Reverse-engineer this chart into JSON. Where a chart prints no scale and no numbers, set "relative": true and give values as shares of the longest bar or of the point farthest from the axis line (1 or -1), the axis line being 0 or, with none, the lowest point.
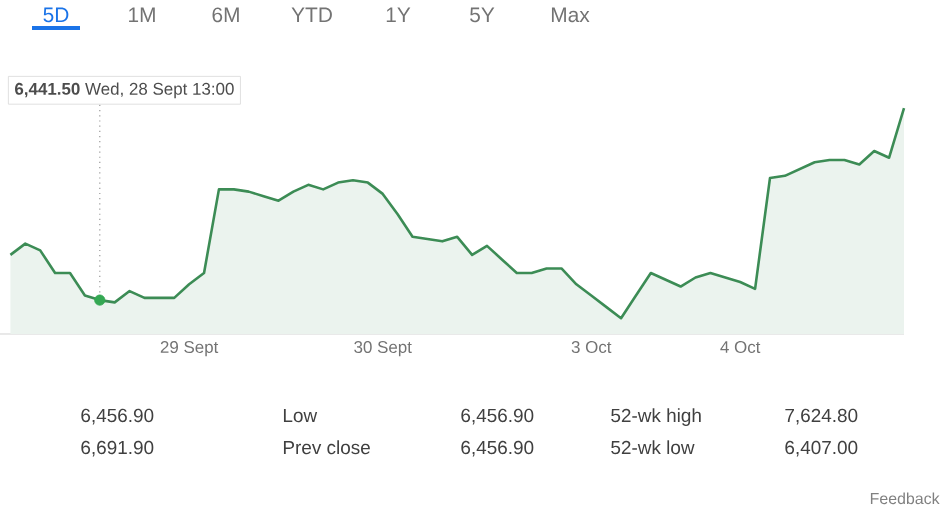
{
  "chart_data": {
    "type": "area",
    "relative": true,
    "categories": [
      null,
      null,
      null,
      null,
      null,
      null,
      null,
      null,
      null,
      null,
      null,
      null,
      "29 Sept",
      null,
      null,
      null,
      null,
      null,
      null,
      null,
      null,
      null,
      null,
      null,
      null,
      "30 Sept",
      null,
      null,
      null,
      null,
      null,
      null,
      null,
      null,
      null,
      null,
      null,
      null,
      null,
      "3 Oct",
      null,
      null,
      null,
      null,
      null,
      null,
      null,
      null,
      null,
      "4 Oct",
      null,
      null,
      null,
      null,
      null,
      null,
      null,
      null,
      null,
      null,
      null
    ],
    "series": [
      {
        "color": "#3c8c55",
        "values": [
          0.35,
          0.4,
          0.37,
          0.27,
          0.27,
          0.17,
          0.15,
          0.14,
          0.19,
          0.16,
          0.16,
          0.16,
          0.22,
          0.27,
          0.64,
          0.64,
          0.63,
          0.61,
          0.59,
          0.63,
          0.66,
          0.64,
          0.67,
          0.68,
          0.67,
          0.62,
          0.53,
          0.43,
          0.42,
          0.41,
          0.43,
          0.35,
          0.39,
          0.33,
          0.27,
          0.27,
          0.29,
          0.29,
          0.22,
          0.17,
          0.12,
          0.07,
          0.17,
          0.27,
          0.24,
          0.21,
          0.25,
          0.27,
          0.25,
          0.23,
          0.2,
          0.69,
          0.7,
          0.73,
          0.76,
          0.77,
          0.77,
          0.75,
          0.81,
          0.78,
          1.0
        ]
      },
      {
        "type": "scatter",
        "color": "#34a853",
        "values": [
          null,
          null,
          null,
          null,
          null,
          null,
          0.15,
          null,
          null,
          null,
          null,
          null,
          null,
          null,
          null,
          null,
          null,
          null,
          null,
          null,
          null,
          null,
          null,
          null,
          null,
          null,
          null,
          null,
          null,
          null,
          null,
          null,
          null,
          null,
          null,
          null,
          null,
          null,
          null,
          null,
          null,
          null,
          null,
          null,
          null,
          null,
          null,
          null,
          null,
          null,
          null,
          null,
          null,
          null,
          null,
          null,
          null,
          null,
          null,
          null,
          null
        ]
      }
    ],
    "annotations": [
      "**6,441.50** Wed, 28 Sept 13:00",
      "5D",
      "1M",
      "6M",
      "YTD",
      "1Y",
      "5Y",
      "Max",
      "6,456.90",
      "Low",
      "6,456.90",
      "52-wk high",
      "7,624.80",
      "6,691.90",
      "Prev close",
      "6,456.90",
      "52-wk low",
      "6,407.00",
      "Feedback"
    ]
  }
}
